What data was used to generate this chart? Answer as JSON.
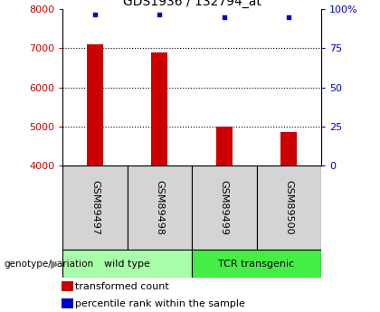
{
  "title": "GDS1936 / 132794_at",
  "samples": [
    "GSM89497",
    "GSM89498",
    "GSM89499",
    "GSM89500"
  ],
  "bar_values": [
    7100,
    6900,
    5000,
    4850
  ],
  "percentile_values": [
    97,
    97,
    95,
    95
  ],
  "bar_color": "#cc0000",
  "dot_color": "#0000cc",
  "ymin": 4000,
  "ymax": 8000,
  "yright_min": 0,
  "yright_max": 100,
  "yticks_left": [
    4000,
    5000,
    6000,
    7000,
    8000
  ],
  "yticks_right": [
    0,
    25,
    50,
    75,
    100
  ],
  "grid_values": [
    5000,
    6000,
    7000
  ],
  "groups": [
    {
      "label": "wild type",
      "samples": [
        0,
        1
      ],
      "color": "#aaffaa"
    },
    {
      "label": "TCR transgenic",
      "samples": [
        2,
        3
      ],
      "color": "#44ee44"
    }
  ],
  "bar_width": 0.25,
  "legend_red_label": "transformed count",
  "legend_blue_label": "percentile rank within the sample",
  "genotype_label": "genotype/variation",
  "title_fontsize": 10,
  "tick_fontsize": 8,
  "label_fontsize": 8,
  "group_fontsize": 8,
  "legend_fontsize": 8
}
